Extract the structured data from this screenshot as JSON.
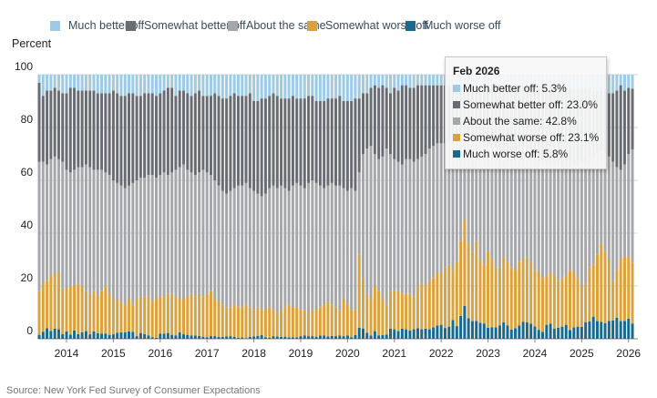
{
  "colors": {
    "much_better": "#9dcbe6",
    "somewhat_better": "#696d73",
    "same": "#a6a7aa",
    "somewhat_worse": "#d9a23b",
    "much_worse": "#17698e"
  },
  "legend": [
    {
      "key": "much_better",
      "label": "Much better off"
    },
    {
      "key": "somewhat_better",
      "label": "Somewhat better off"
    },
    {
      "key": "same",
      "label": "About the same"
    },
    {
      "key": "somewhat_worse",
      "label": "Somewhat worse off"
    },
    {
      "key": "much_worse",
      "label": "Much worse off"
    }
  ],
  "source": "Source: New York Fed Survey of Consumer Expectations",
  "tooltip": {
    "title": "Feb 2026",
    "rows": [
      {
        "key": "much_better",
        "text": "Much better off: 5.3%"
      },
      {
        "key": "somewhat_better",
        "text": "Somewhat better off: 23.0%"
      },
      {
        "key": "same",
        "text": "About the same: 42.8%"
      },
      {
        "key": "somewhat_worse",
        "text": "Somewhat worse off: 23.1%"
      },
      {
        "key": "much_worse",
        "text": "Much worse off: 5.8%"
      }
    ]
  },
  "chart_data": {
    "type": "bar",
    "stacked": true,
    "ylabel": "Percent",
    "ylim": [
      0,
      100
    ],
    "yticks": [
      "0",
      "20",
      "40",
      "60",
      "80",
      "100"
    ],
    "xticks": [
      "2014",
      "2015",
      "2016",
      "2017",
      "2018",
      "2019",
      "2020",
      "2021",
      "2022",
      "2023",
      "2024",
      "2025",
      "2026"
    ],
    "x_start": "2013-06",
    "frequency": "monthly",
    "grid": true,
    "legend_position": "top",
    "series": [
      {
        "name": "Much worse off",
        "key": "much_worse",
        "values": [
          1.5,
          2.7,
          4.0,
          3.0,
          3.8,
          3.6,
          1.8,
          2.8,
          1.6,
          3.2,
          1.8,
          2.5,
          2.9,
          1.7,
          2.8,
          2.1,
          1.9,
          2.0,
          1.5,
          1.7,
          2.3,
          2.4,
          2.5,
          2.8,
          2.6,
          1.0,
          2.2,
          1.8,
          1.3,
          0.6,
          0.4,
          2.0,
          1.9,
          2.2,
          1.5,
          1.3,
          2.4,
          1.7,
          1.5,
          1.3,
          1.2,
          1.1,
          0.8,
          0.6,
          1.0,
          1.0,
          0.8,
          0.7,
          0.9,
          1.0,
          0.8,
          0.4,
          0.5,
          0.3,
          0.7,
          0.9,
          1.1,
          1.4,
          0.6,
          0.4,
          1.0,
          0.9,
          0.7,
          0.8,
          0.6,
          0.6,
          0.5,
          1.0,
          1.3,
          1.0,
          1.0,
          0.8,
          1.2,
          1.3,
          0.9,
          1.1,
          1.0,
          1.2,
          1.0,
          1.3,
          0.6,
          1.4,
          4.2,
          3.9,
          2.3,
          1.2,
          2.9,
          1.3,
          1.4,
          1.6,
          3.8,
          3.6,
          2.9,
          3.8,
          3.6,
          3.1,
          3.6,
          4.0,
          3.6,
          3.8,
          3.6,
          4.3,
          5.0,
          5.3,
          4.1,
          4.6,
          7.1,
          4.8,
          8.7,
          12.5,
          7.8,
          6.7,
          6.8,
          6.1,
          5.8,
          4.2,
          4.4,
          4.3,
          5.1,
          6.3,
          5.0,
          3.5,
          4.0,
          5.0,
          6.5,
          6.2,
          5.7,
          4.7,
          3.4,
          2.6,
          5.3,
          5.7,
          3.8,
          4.2,
          4.6,
          5.3,
          3.3,
          4.3,
          4.6,
          4.5,
          6.3,
          6.6,
          8.4,
          6.7,
          6.4,
          5.9,
          6.8,
          6.9,
          8.0,
          6.7,
          6.8,
          7.6,
          5.8
        ]
      },
      {
        "name": "Somewhat worse off",
        "key": "somewhat_worse",
        "values": [
          16.5,
          18.3,
          18.0,
          21.0,
          21.2,
          21.4,
          17.2,
          16.2,
          18.4,
          16.8,
          19.2,
          17.5,
          15.1,
          15.3,
          15.2,
          13.9,
          16.1,
          18.0,
          15.5,
          13.3,
          12.7,
          11.6,
          10.5,
          12.2,
          10.4,
          14.0,
          13.8,
          14.2,
          14.7,
          13.4,
          14.6,
          14.0,
          14.1,
          14.8,
          15.5,
          14.7,
          12.6,
          13.3,
          14.5,
          15.7,
          14.8,
          15.9,
          15.2,
          16.4,
          17.0,
          14.0,
          13.2,
          12.3,
          11.1,
          11.0,
          12.2,
          11.6,
          11.5,
          12.7,
          11.3,
          10.1,
          10.9,
          9.6,
          10.4,
          11.6,
          10.0,
          9.1,
          10.3,
          11.2,
          12.4,
          11.4,
          11.5,
          10.0,
          9.7,
          9.0,
          10.0,
          10.2,
          10.8,
          11.7,
          13.1,
          11.9,
          11.0,
          9.8,
          14.0,
          11.7,
          10.4,
          9.6,
          27.8,
          19.1,
          14.7,
          13.8,
          17.1,
          16.7,
          13.6,
          11.4,
          14.2,
          14.4,
          15.1,
          13.2,
          13.4,
          13.9,
          12.4,
          16.0,
          17.4,
          16.2,
          18.4,
          18.7,
          20.0,
          19.7,
          22.9,
          23.4,
          18.9,
          24.2,
          28.3,
          32.5,
          28.2,
          26.3,
          30.2,
          23.9,
          22.2,
          28.8,
          25.6,
          22.7,
          21.9,
          24.7,
          24.0,
          23.5,
          22.0,
          24.0,
          23.5,
          24.8,
          23.3,
          21.3,
          21.6,
          20.4,
          18.7,
          19.3,
          20.2,
          17.8,
          18.4,
          18.7,
          22.7,
          20.7,
          18.4,
          15.5,
          14.7,
          20.4,
          19.6,
          25.3,
          29.6,
          27.1,
          23.2,
          15.1,
          18.0,
          23.3,
          24.2,
          23.4,
          23.1
        ]
      },
      {
        "name": "About the same",
        "key": "same",
        "values": [
          49,
          46,
          44,
          44,
          44,
          43,
          48,
          45,
          43,
          44,
          44,
          45,
          48,
          48,
          46,
          48,
          46,
          43,
          45,
          45,
          44,
          44,
          44,
          43,
          46,
          45,
          45,
          45,
          46,
          48,
          46,
          46,
          47,
          45,
          46,
          48,
          50,
          51,
          48,
          46,
          46,
          46,
          48,
          46,
          44,
          45,
          44,
          43,
          43,
          44,
          44,
          46,
          46,
          46,
          45,
          45,
          43,
          43,
          44,
          45,
          47,
          47,
          47,
          45,
          43,
          46,
          47,
          47,
          46,
          49,
          49,
          48,
          46,
          44,
          44,
          46,
          46,
          47,
          42,
          43,
          46,
          45,
          31,
          47,
          55,
          58,
          50,
          50,
          54,
          59,
          52,
          50,
          49,
          49,
          51,
          51,
          51,
          48,
          48,
          50,
          50,
          50,
          49,
          49,
          47,
          47,
          50,
          48,
          41,
          34,
          42,
          44,
          39,
          45,
          46,
          40,
          42,
          45,
          44,
          40,
          41,
          43,
          44,
          40,
          39,
          37,
          39,
          42,
          42,
          44,
          42,
          41,
          42,
          44,
          42,
          41,
          39,
          41,
          43,
          47,
          46,
          41,
          41,
          38,
          35,
          37,
          39,
          45,
          39,
          34,
          35,
          39,
          42.8
        ]
      },
      {
        "name": "Somewhat better off",
        "key": "somewhat_better",
        "values": [
          30,
          25,
          28,
          26,
          26,
          26,
          26,
          29,
          32,
          31,
          29,
          29,
          28,
          29,
          30,
          29,
          29,
          30,
          31,
          34,
          34,
          34,
          35,
          35,
          34,
          32,
          31,
          32,
          31,
          31,
          31,
          31,
          31,
          33,
          32,
          28,
          29,
          28,
          29,
          29,
          31,
          31,
          28,
          29,
          30,
          33,
          34,
          35,
          36,
          36,
          36,
          34,
          34,
          33,
          36,
          34,
          35,
          37,
          36,
          35,
          35,
          35,
          33,
          34,
          35,
          34,
          32,
          33,
          34,
          33,
          32,
          31,
          32,
          33,
          33,
          32,
          33,
          34,
          33,
          34,
          33,
          35,
          28,
          23,
          21,
          22,
          26,
          27,
          27,
          23,
          23,
          27,
          27,
          30,
          28,
          27,
          28,
          28,
          27,
          26,
          24,
          23,
          22,
          22,
          22,
          21,
          20,
          19,
          18,
          17,
          18,
          19,
          20,
          21,
          22,
          23,
          24,
          24,
          25,
          25,
          26,
          26,
          26,
          27,
          27,
          28,
          28,
          28,
          29,
          29,
          30,
          30,
          29,
          29,
          30,
          30,
          30,
          29,
          29,
          28,
          28,
          27,
          25,
          24,
          23,
          24,
          24,
          26,
          29,
          32,
          28,
          25,
          23.0
        ]
      },
      {
        "name": "Much better off",
        "key": "much_better",
        "values": [
          3,
          8,
          6,
          6,
          5,
          6,
          7,
          7,
          5,
          5,
          6,
          6,
          6,
          6,
          6,
          7,
          7,
          7,
          7,
          6,
          7,
          8,
          8,
          7,
          7,
          8,
          8,
          7,
          7,
          7,
          8,
          7,
          6,
          5,
          5,
          8,
          6,
          6,
          7,
          8,
          7,
          6,
          8,
          8,
          8,
          7,
          8,
          9,
          9,
          8,
          7,
          8,
          8,
          8,
          7,
          10,
          10,
          9,
          9,
          8,
          7,
          8,
          9,
          9,
          9,
          8,
          9,
          9,
          9,
          8,
          8,
          10,
          10,
          10,
          9,
          9,
          9,
          8,
          10,
          10,
          10,
          9,
          9,
          7,
          7,
          5,
          4,
          5,
          4,
          5,
          7,
          5,
          6,
          4,
          4,
          5,
          5,
          4,
          4,
          4,
          4,
          4,
          4,
          4,
          4,
          4,
          4,
          4,
          4,
          4,
          4,
          4,
          4,
          4,
          4,
          4,
          4,
          4,
          4,
          4,
          4,
          4,
          4,
          4,
          4,
          4,
          4,
          4,
          4,
          4,
          4,
          4,
          5,
          5,
          5,
          5,
          5,
          5,
          5,
          5,
          5,
          5,
          6,
          6,
          6,
          6,
          7,
          7,
          6,
          4,
          6,
          5,
          5.3
        ]
      }
    ]
  }
}
